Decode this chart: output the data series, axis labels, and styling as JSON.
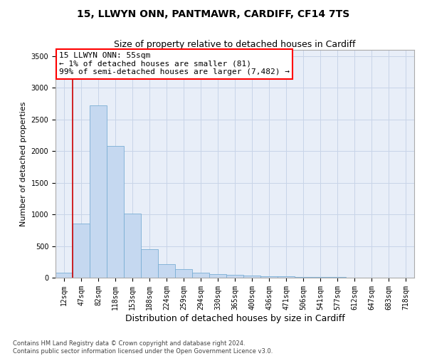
{
  "title1": "15, LLWYN ONN, PANTMAWR, CARDIFF, CF14 7TS",
  "title2": "Size of property relative to detached houses in Cardiff",
  "xlabel": "Distribution of detached houses by size in Cardiff",
  "ylabel": "Number of detached properties",
  "footer1": "Contains HM Land Registry data © Crown copyright and database right 2024.",
  "footer2": "Contains public sector information licensed under the Open Government Licence v3.0.",
  "categories": [
    "12sqm",
    "47sqm",
    "82sqm",
    "118sqm",
    "153sqm",
    "188sqm",
    "224sqm",
    "259sqm",
    "294sqm",
    "330sqm",
    "365sqm",
    "400sqm",
    "436sqm",
    "471sqm",
    "506sqm",
    "541sqm",
    "577sqm",
    "612sqm",
    "647sqm",
    "683sqm",
    "718sqm"
  ],
  "bar_heights": [
    81,
    850,
    2720,
    2080,
    1010,
    450,
    210,
    140,
    75,
    55,
    45,
    35,
    25,
    20,
    15,
    10,
    8,
    5,
    3,
    2,
    1
  ],
  "bar_color": "#c5d8f0",
  "bar_edge_color": "#7aaed4",
  "red_line_index": 1,
  "annotation_text": "15 LLWYN ONN: 55sqm\n← 1% of detached houses are smaller (81)\n99% of semi-detached houses are larger (7,482) →",
  "annotation_box_color": "white",
  "annotation_box_edge": "red",
  "red_line_color": "#cc0000",
  "ylim": [
    0,
    3600
  ],
  "yticks": [
    0,
    500,
    1000,
    1500,
    2000,
    2500,
    3000,
    3500
  ],
  "grid_color": "#c8d4e8",
  "bg_color": "#e8eef8",
  "title1_fontsize": 10,
  "title2_fontsize": 9,
  "xlabel_fontsize": 9,
  "ylabel_fontsize": 8,
  "tick_fontsize": 7,
  "annotation_fontsize": 8,
  "footer_fontsize": 6
}
